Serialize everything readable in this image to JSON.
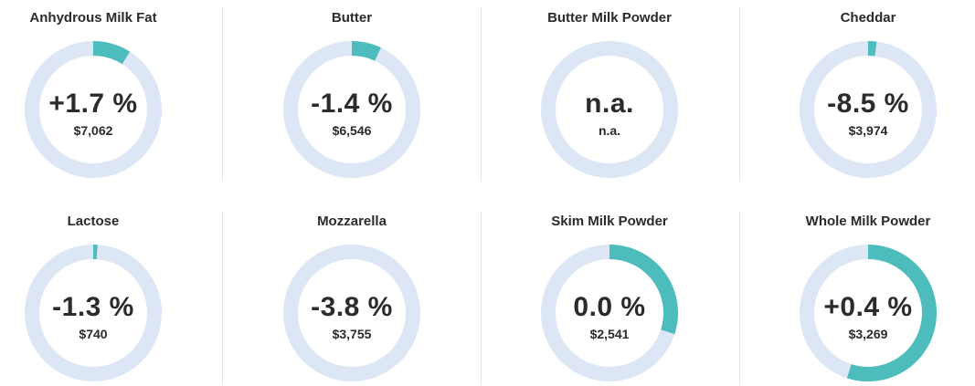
{
  "colors": {
    "track": "#dce6f5",
    "fill": "#4dbcbd"
  },
  "chart_data": {
    "type": "pie",
    "items": [
      {
        "name": "Anhydrous Milk Fat",
        "change_label": "+1.7 %",
        "price_label": "$7,062",
        "fraction": 0.09
      },
      {
        "name": "Butter",
        "change_label": "-1.4 %",
        "price_label": "$6,546",
        "fraction": 0.07
      },
      {
        "name": "Butter Milk Powder",
        "change_label": "n.a.",
        "price_label": "n.a.",
        "fraction": 0
      },
      {
        "name": "Cheddar",
        "change_label": "-8.5 %",
        "price_label": "$3,974",
        "fraction": 0.02
      },
      {
        "name": "Lactose",
        "change_label": "-1.3 %",
        "price_label": "$740",
        "fraction": 0.01
      },
      {
        "name": "Mozzarella",
        "change_label": "-3.8 %",
        "price_label": "$3,755",
        "fraction": 0
      },
      {
        "name": "Skim Milk Powder",
        "change_label": "0.0 %",
        "price_label": "$2,541",
        "fraction": 0.3
      },
      {
        "name": "Whole Milk Powder",
        "change_label": "+0.4 %",
        "price_label": "$3,269",
        "fraction": 0.55
      }
    ]
  }
}
